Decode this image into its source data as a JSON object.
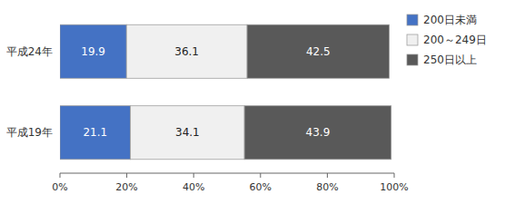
{
  "chart_data": {
    "type": "bar",
    "orientation": "horizontal",
    "stacked": true,
    "categories": [
      "平成24年",
      "平成19年"
    ],
    "series": [
      {
        "name": "200日未満",
        "color": "#4472c4",
        "values": [
          19.9,
          21.1
        ]
      },
      {
        "name": "200～249日",
        "color": "#f0f0f0",
        "values": [
          36.1,
          34.1
        ]
      },
      {
        "name": "250日以上",
        "color": "#595959",
        "values": [
          42.5,
          43.9
        ]
      }
    ],
    "xlim": [
      0,
      100
    ],
    "xticks": [
      {
        "value": 0,
        "label": "0%"
      },
      {
        "value": 20,
        "label": "20%"
      },
      {
        "value": 40,
        "label": "40%"
      },
      {
        "value": 60,
        "label": "60%"
      },
      {
        "value": 80,
        "label": "80%"
      },
      {
        "value": 100,
        "label": "100%"
      }
    ],
    "data_labels": true,
    "legend": "right"
  }
}
